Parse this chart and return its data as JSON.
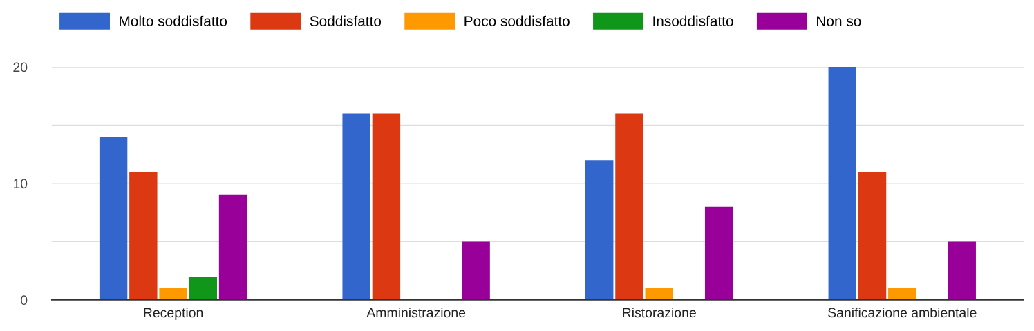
{
  "chart_data": {
    "type": "bar",
    "categories": [
      "Reception",
      "Amministrazione",
      "Ristorazione",
      "Sanificazione ambientale"
    ],
    "series": [
      {
        "name": "Molto soddisfatto",
        "color": "#3366cc",
        "values": [
          14,
          16,
          12,
          20
        ]
      },
      {
        "name": "Soddisfatto",
        "color": "#dc3912",
        "values": [
          11,
          16,
          16,
          11
        ]
      },
      {
        "name": "Poco soddisfatto",
        "color": "#ff9900",
        "values": [
          1,
          0,
          1,
          1
        ]
      },
      {
        "name": "Insoddisfatto",
        "color": "#109618",
        "values": [
          2,
          0,
          0,
          0
        ]
      },
      {
        "name": "Non so",
        "color": "#990099",
        "values": [
          9,
          5,
          8,
          5
        ]
      }
    ],
    "ylim": [
      0,
      20
    ],
    "yticks": [
      0,
      {
        "value": 5,
        "label": null
      },
      10,
      {
        "value": 15,
        "label": null
      },
      20
    ],
    "grid": "y",
    "legend": "top"
  }
}
